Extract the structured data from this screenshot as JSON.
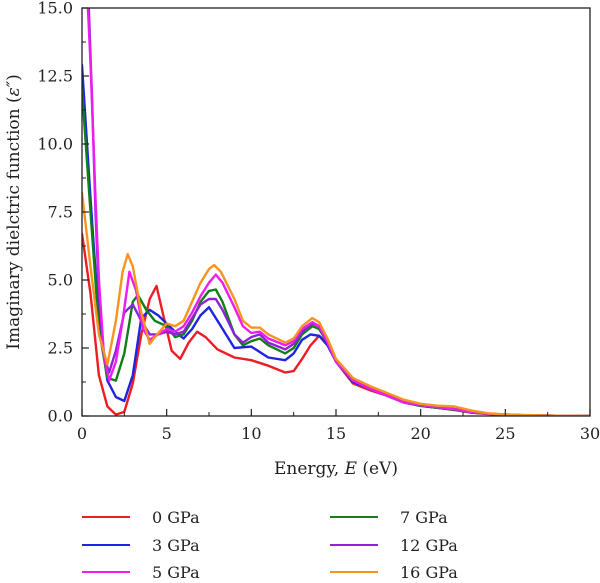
{
  "chart_data": {
    "type": "line",
    "xlabel_prefix": "Energy, ",
    "xlabel_var": "E",
    "xlabel_suffix": " (eV)",
    "ylabel_prefix": "Imaginary dielctric function (",
    "ylabel_var": "ε″",
    "ylabel_suffix": ")",
    "xlim": [
      0,
      30
    ],
    "ylim": [
      0,
      15
    ],
    "x_ticks": [
      "0",
      "5",
      "10",
      "15",
      "20",
      "25",
      "30"
    ],
    "y_ticks": [
      "0.0",
      "2.5",
      "5.0",
      "7.5",
      "10.0",
      "12.5",
      "15.0"
    ],
    "grid": false,
    "legend_position": "bottom",
    "series": [
      {
        "name": "0 GPa",
        "color": "#ee1c25",
        "points": [
          [
            0,
            6.7
          ],
          [
            0.5,
            4.5
          ],
          [
            1.0,
            1.5
          ],
          [
            1.5,
            0.35
          ],
          [
            2.0,
            0.05
          ],
          [
            2.5,
            0.15
          ],
          [
            3.0,
            1.2
          ],
          [
            3.5,
            3.0
          ],
          [
            4.0,
            4.3
          ],
          [
            4.4,
            4.78
          ],
          [
            4.8,
            3.7
          ],
          [
            5.3,
            2.4
          ],
          [
            5.8,
            2.1
          ],
          [
            6.3,
            2.7
          ],
          [
            6.8,
            3.1
          ],
          [
            7.3,
            2.9
          ],
          [
            8.0,
            2.45
          ],
          [
            9.0,
            2.15
          ],
          [
            10.0,
            2.05
          ],
          [
            11.0,
            1.85
          ],
          [
            12.0,
            1.6
          ],
          [
            12.5,
            1.65
          ],
          [
            13.0,
            2.1
          ],
          [
            13.5,
            2.6
          ],
          [
            14.0,
            2.95
          ],
          [
            14.5,
            2.7
          ],
          [
            15.0,
            2.0
          ],
          [
            16.0,
            1.2
          ],
          [
            17.0,
            0.95
          ],
          [
            18.0,
            0.75
          ],
          [
            19.0,
            0.5
          ],
          [
            20.0,
            0.38
          ],
          [
            21.0,
            0.3
          ],
          [
            22.0,
            0.22
          ],
          [
            23.0,
            0.12
          ],
          [
            24.0,
            0.07
          ],
          [
            25.0,
            0.04
          ],
          [
            26.0,
            0.02
          ],
          [
            28.0,
            0.01
          ],
          [
            30.0,
            0.0
          ]
        ]
      },
      {
        "name": "3 GPa",
        "color": "#1f24e3",
        "points": [
          [
            0,
            12.9
          ],
          [
            0.5,
            8.0
          ],
          [
            1.0,
            3.5
          ],
          [
            1.5,
            1.3
          ],
          [
            2.0,
            0.7
          ],
          [
            2.5,
            0.55
          ],
          [
            3.0,
            1.5
          ],
          [
            3.5,
            3.6
          ],
          [
            4.0,
            3.9
          ],
          [
            4.5,
            3.7
          ],
          [
            5.0,
            3.4
          ],
          [
            5.5,
            3.1
          ],
          [
            6.0,
            2.85
          ],
          [
            6.5,
            3.2
          ],
          [
            7.0,
            3.7
          ],
          [
            7.5,
            4.0
          ],
          [
            8.0,
            3.5
          ],
          [
            9.0,
            2.5
          ],
          [
            10.0,
            2.55
          ],
          [
            11.0,
            2.15
          ],
          [
            12.0,
            2.05
          ],
          [
            12.5,
            2.3
          ],
          [
            13.0,
            2.8
          ],
          [
            13.5,
            3.0
          ],
          [
            14.0,
            2.95
          ],
          [
            14.5,
            2.6
          ],
          [
            15.0,
            2.0
          ],
          [
            16.0,
            1.25
          ],
          [
            17.0,
            1.0
          ],
          [
            18.0,
            0.75
          ],
          [
            19.0,
            0.5
          ],
          [
            20.0,
            0.37
          ],
          [
            21.0,
            0.3
          ],
          [
            22.0,
            0.23
          ],
          [
            23.0,
            0.13
          ],
          [
            24.0,
            0.08
          ],
          [
            25.0,
            0.05
          ],
          [
            26.0,
            0.03
          ],
          [
            28.0,
            0.01
          ],
          [
            30.0,
            0.0
          ]
        ]
      },
      {
        "name": "5 GPa",
        "color": "#ee1cee",
        "points": [
          [
            0.35,
            15.0
          ],
          [
            0.5,
            13.0
          ],
          [
            0.8,
            8.0
          ],
          [
            1.0,
            5.0
          ],
          [
            1.3,
            2.2
          ],
          [
            1.6,
            1.3
          ],
          [
            2.0,
            2.0
          ],
          [
            2.4,
            3.5
          ],
          [
            2.8,
            5.3
          ],
          [
            3.2,
            4.6
          ],
          [
            3.6,
            3.2
          ],
          [
            4.0,
            2.8
          ],
          [
            4.5,
            3.0
          ],
          [
            5.0,
            3.2
          ],
          [
            5.5,
            3.1
          ],
          [
            6.0,
            3.3
          ],
          [
            6.5,
            3.8
          ],
          [
            7.0,
            4.4
          ],
          [
            7.5,
            4.9
          ],
          [
            7.9,
            5.2
          ],
          [
            8.3,
            4.9
          ],
          [
            9.0,
            4.0
          ],
          [
            9.5,
            3.3
          ],
          [
            10.0,
            3.05
          ],
          [
            10.5,
            3.1
          ],
          [
            11.0,
            2.85
          ],
          [
            12.0,
            2.6
          ],
          [
            12.5,
            2.75
          ],
          [
            13.0,
            3.2
          ],
          [
            13.6,
            3.45
          ],
          [
            14.0,
            3.3
          ],
          [
            14.5,
            2.7
          ],
          [
            15.0,
            2.0
          ],
          [
            16.0,
            1.3
          ],
          [
            17.0,
            1.0
          ],
          [
            18.0,
            0.75
          ],
          [
            19.0,
            0.5
          ],
          [
            20.0,
            0.4
          ],
          [
            21.0,
            0.32
          ],
          [
            22.0,
            0.25
          ],
          [
            23.0,
            0.14
          ],
          [
            24.0,
            0.08
          ],
          [
            25.0,
            0.05
          ],
          [
            26.0,
            0.03
          ],
          [
            28.0,
            0.01
          ],
          [
            30.0,
            0.0
          ]
        ]
      },
      {
        "name": "7 GPa",
        "color": "#0f7f16",
        "points": [
          [
            0,
            12.0
          ],
          [
            0.5,
            7.5
          ],
          [
            1.0,
            3.2
          ],
          [
            1.5,
            1.4
          ],
          [
            2.0,
            1.3
          ],
          [
            2.5,
            2.3
          ],
          [
            3.0,
            4.2
          ],
          [
            3.3,
            4.45
          ],
          [
            3.8,
            3.9
          ],
          [
            4.3,
            3.5
          ],
          [
            5.0,
            3.3
          ],
          [
            5.5,
            2.9
          ],
          [
            6.0,
            3.0
          ],
          [
            6.5,
            3.5
          ],
          [
            7.0,
            4.2
          ],
          [
            7.5,
            4.6
          ],
          [
            7.9,
            4.65
          ],
          [
            8.3,
            4.2
          ],
          [
            9.0,
            3.0
          ],
          [
            9.5,
            2.6
          ],
          [
            10.0,
            2.75
          ],
          [
            10.5,
            2.85
          ],
          [
            11.0,
            2.6
          ],
          [
            12.0,
            2.3
          ],
          [
            12.5,
            2.5
          ],
          [
            13.0,
            3.0
          ],
          [
            13.6,
            3.3
          ],
          [
            14.0,
            3.2
          ],
          [
            14.5,
            2.7
          ],
          [
            15.0,
            2.0
          ],
          [
            16.0,
            1.3
          ],
          [
            17.0,
            1.0
          ],
          [
            18.0,
            0.75
          ],
          [
            19.0,
            0.5
          ],
          [
            20.0,
            0.38
          ],
          [
            21.0,
            0.3
          ],
          [
            22.0,
            0.23
          ],
          [
            23.0,
            0.13
          ],
          [
            24.0,
            0.08
          ],
          [
            25.0,
            0.05
          ],
          [
            26.0,
            0.03
          ],
          [
            28.0,
            0.01
          ],
          [
            30.0,
            0.0
          ]
        ]
      },
      {
        "name": "12 GPa",
        "color": "#8e21d9",
        "points": [
          [
            0.4,
            15.0
          ],
          [
            0.6,
            11.5
          ],
          [
            0.8,
            7.5
          ],
          [
            1.0,
            4.5
          ],
          [
            1.3,
            2.2
          ],
          [
            1.6,
            1.6
          ],
          [
            2.0,
            2.4
          ],
          [
            2.5,
            3.8
          ],
          [
            3.0,
            4.1
          ],
          [
            3.5,
            3.5
          ],
          [
            4.0,
            3.0
          ],
          [
            4.5,
            3.0
          ],
          [
            5.0,
            3.1
          ],
          [
            5.5,
            3.0
          ],
          [
            6.0,
            3.1
          ],
          [
            6.5,
            3.6
          ],
          [
            7.0,
            4.1
          ],
          [
            7.5,
            4.3
          ],
          [
            7.9,
            4.3
          ],
          [
            8.3,
            3.9
          ],
          [
            9.0,
            3.0
          ],
          [
            9.5,
            2.7
          ],
          [
            10.0,
            2.9
          ],
          [
            10.5,
            3.0
          ],
          [
            11.0,
            2.7
          ],
          [
            12.0,
            2.45
          ],
          [
            12.5,
            2.65
          ],
          [
            13.0,
            3.1
          ],
          [
            13.6,
            3.4
          ],
          [
            14.0,
            3.3
          ],
          [
            14.5,
            2.7
          ],
          [
            15.0,
            2.0
          ],
          [
            16.0,
            1.35
          ],
          [
            17.0,
            1.05
          ],
          [
            18.0,
            0.8
          ],
          [
            19.0,
            0.55
          ],
          [
            20.0,
            0.4
          ],
          [
            21.0,
            0.33
          ],
          [
            22.0,
            0.26
          ],
          [
            23.0,
            0.15
          ],
          [
            24.0,
            0.09
          ],
          [
            25.0,
            0.05
          ],
          [
            26.0,
            0.03
          ],
          [
            28.0,
            0.01
          ],
          [
            30.0,
            0.0
          ]
        ]
      },
      {
        "name": "16 GPa",
        "color": "#f7941d",
        "points": [
          [
            0,
            8.2
          ],
          [
            0.5,
            5.5
          ],
          [
            1.0,
            3.0
          ],
          [
            1.5,
            1.9
          ],
          [
            2.0,
            3.5
          ],
          [
            2.4,
            5.3
          ],
          [
            2.7,
            5.95
          ],
          [
            3.0,
            5.5
          ],
          [
            3.5,
            3.8
          ],
          [
            4.0,
            2.65
          ],
          [
            4.3,
            2.9
          ],
          [
            5.0,
            3.4
          ],
          [
            5.5,
            3.3
          ],
          [
            6.0,
            3.5
          ],
          [
            6.5,
            4.2
          ],
          [
            7.0,
            4.9
          ],
          [
            7.5,
            5.4
          ],
          [
            7.8,
            5.55
          ],
          [
            8.2,
            5.3
          ],
          [
            9.0,
            4.3
          ],
          [
            9.5,
            3.5
          ],
          [
            10.0,
            3.25
          ],
          [
            10.5,
            3.25
          ],
          [
            11.0,
            3.0
          ],
          [
            12.0,
            2.7
          ],
          [
            12.5,
            2.85
          ],
          [
            13.0,
            3.3
          ],
          [
            13.6,
            3.6
          ],
          [
            14.0,
            3.45
          ],
          [
            14.5,
            2.85
          ],
          [
            15.0,
            2.1
          ],
          [
            16.0,
            1.4
          ],
          [
            17.0,
            1.1
          ],
          [
            18.0,
            0.85
          ],
          [
            19.0,
            0.6
          ],
          [
            20.0,
            0.45
          ],
          [
            21.0,
            0.38
          ],
          [
            22.0,
            0.35
          ],
          [
            23.0,
            0.2
          ],
          [
            24.0,
            0.1
          ],
          [
            25.0,
            0.06
          ],
          [
            26.0,
            0.04
          ],
          [
            28.0,
            0.01
          ],
          [
            30.0,
            0.0
          ]
        ]
      }
    ]
  }
}
